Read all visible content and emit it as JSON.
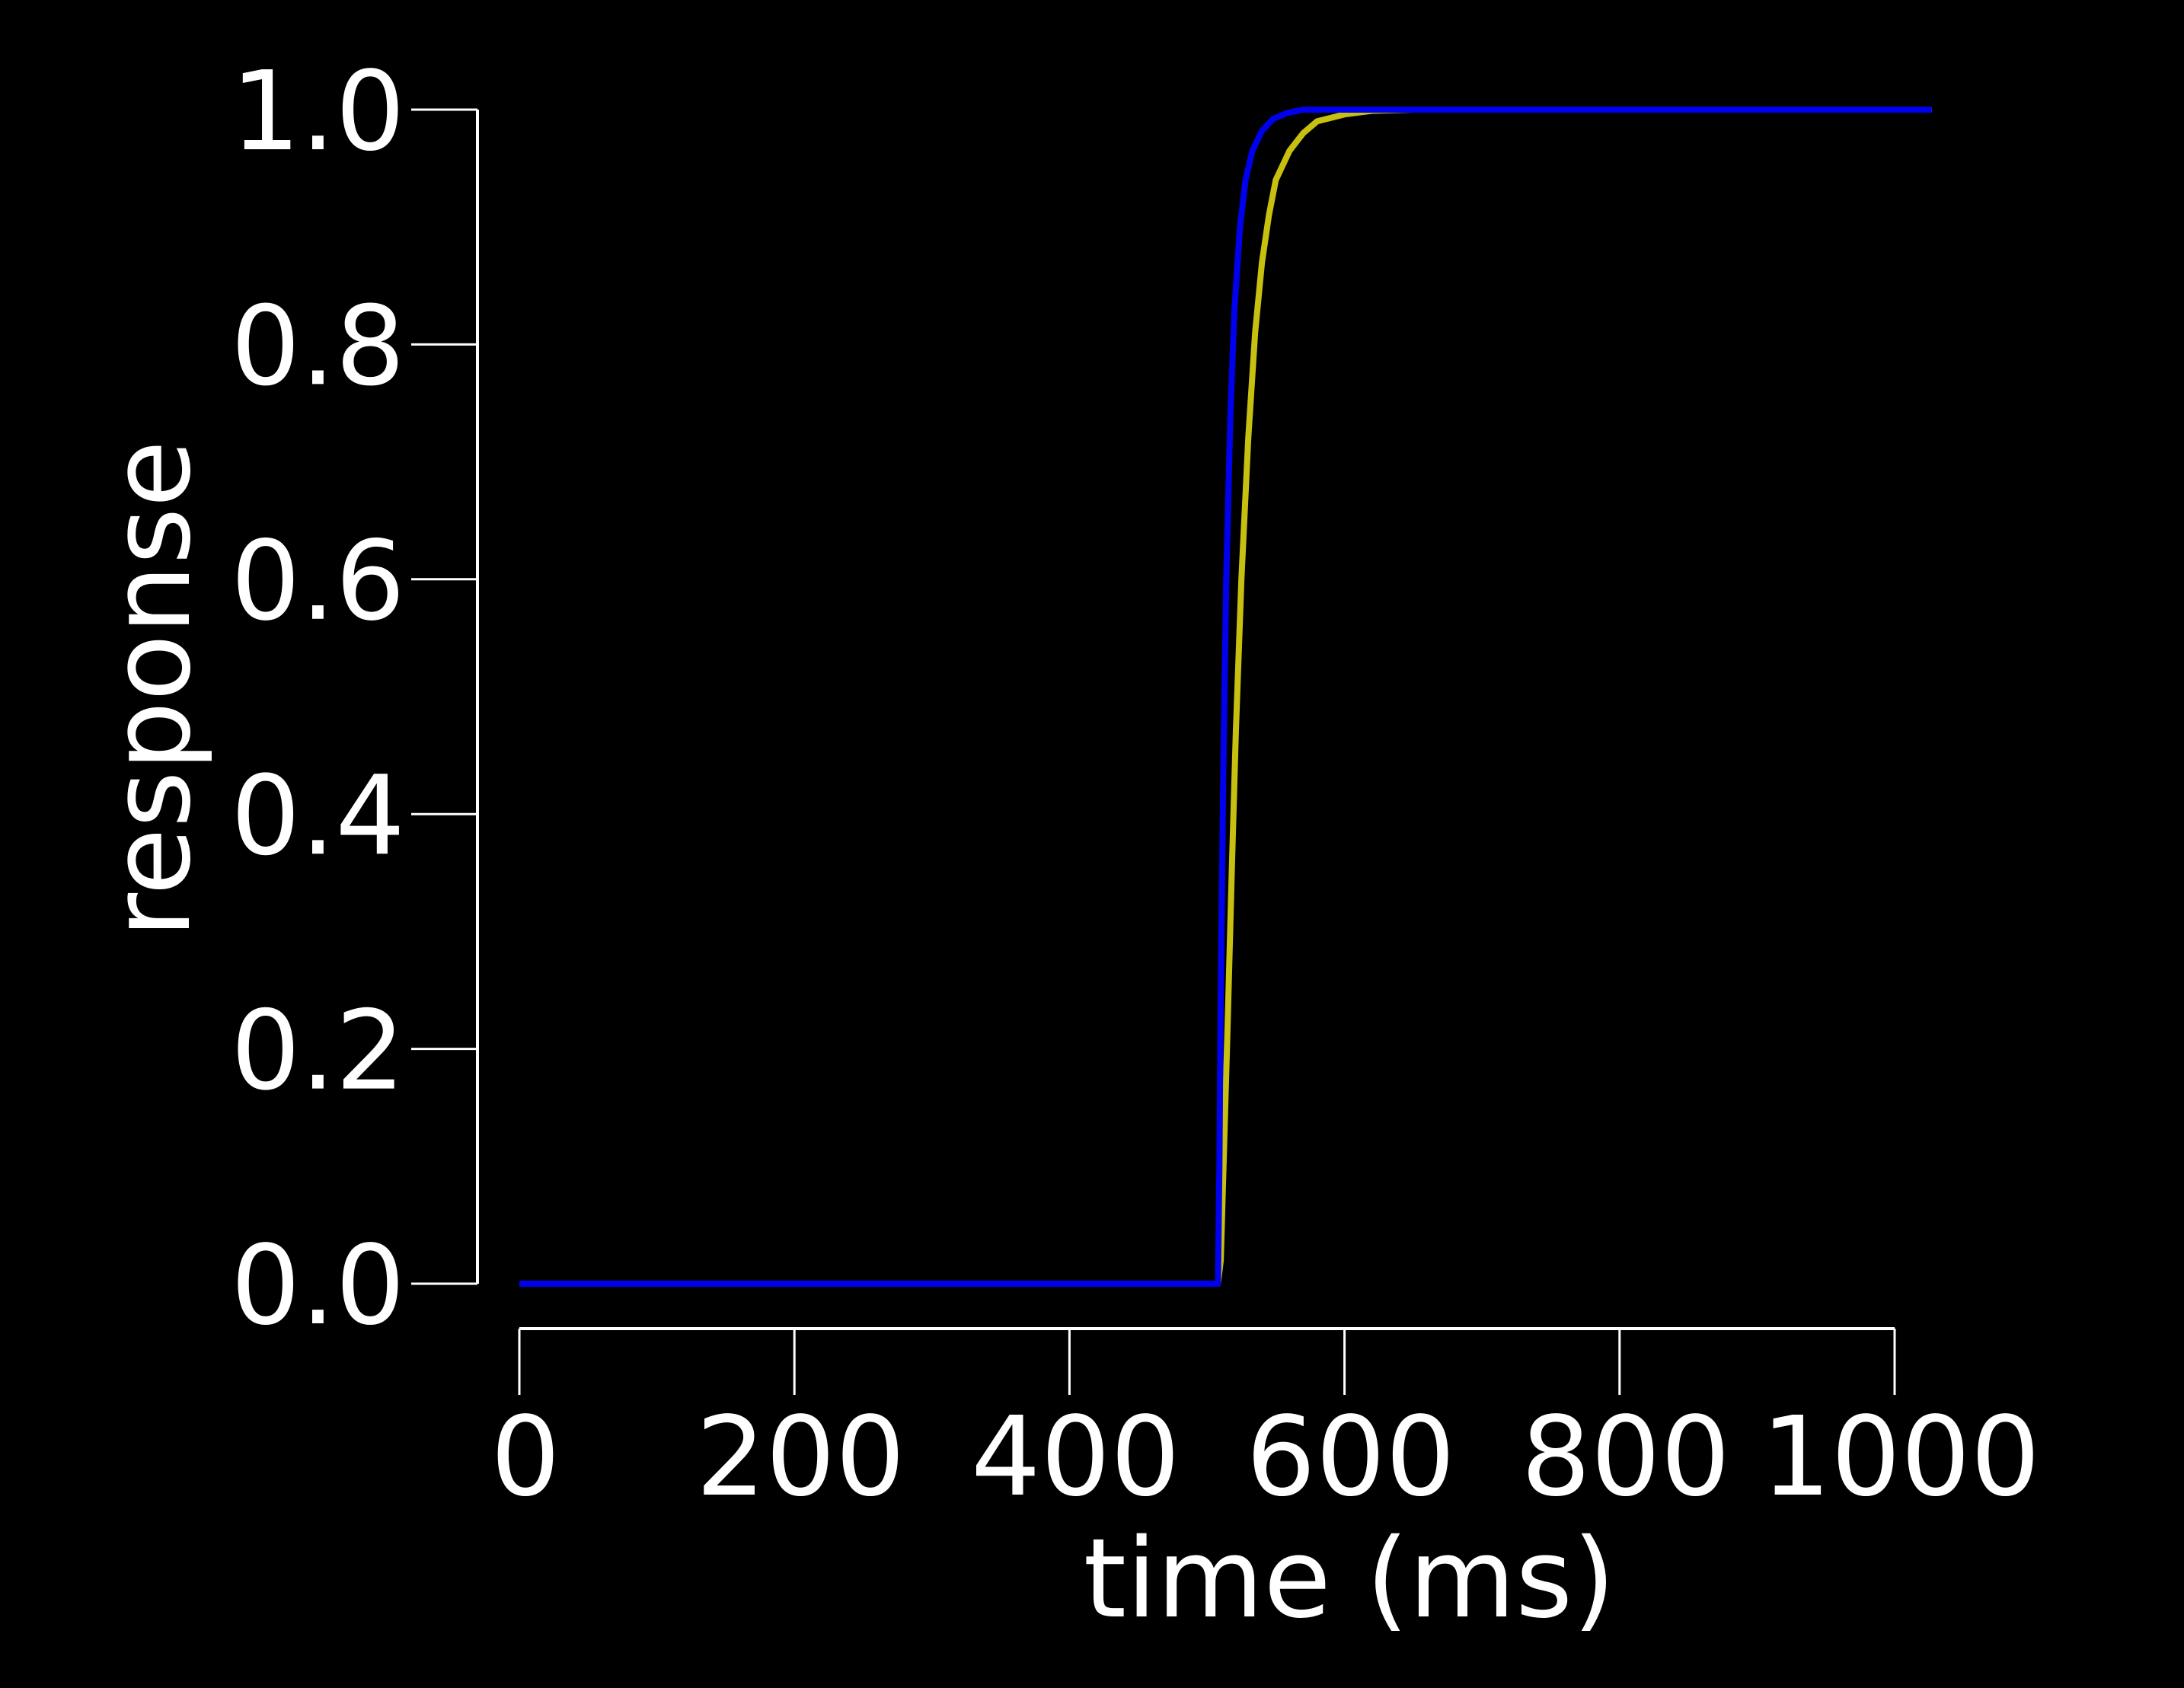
{
  "chart_data": {
    "type": "line",
    "title": "",
    "xlabel": "time (ms)",
    "ylabel": "response",
    "xlim": [
      0,
      1000
    ],
    "ylim": [
      0,
      1
    ],
    "x_ticks": [
      0,
      200,
      400,
      600,
      800,
      1000
    ],
    "x_tick_labels": [
      "0",
      "200",
      "400",
      "600",
      "800",
      "1000"
    ],
    "y_ticks": [
      0.0,
      0.2,
      0.4,
      0.6,
      0.8,
      1.0
    ],
    "y_tick_labels": [
      "0.0",
      "0.2",
      "0.4",
      "0.6",
      "0.8",
      "1.0"
    ],
    "grid": false,
    "legend": "none",
    "background": "#000000",
    "axis_color": "#ffffff",
    "series": [
      {
        "color": "#c8c010",
        "x": [
          0,
          508,
          510,
          512,
          515,
          518,
          521,
          525,
          530,
          535,
          540,
          545,
          550,
          560,
          570,
          580,
          600,
          620,
          650,
          700,
          800,
          1000,
          1027
        ],
        "y": [
          0,
          0,
          0.02,
          0.1,
          0.22,
          0.35,
          0.47,
          0.6,
          0.72,
          0.81,
          0.87,
          0.91,
          0.94,
          0.965,
          0.98,
          0.99,
          0.996,
          0.999,
          1.0,
          1.0,
          1.0,
          1.0,
          1.0
        ]
      },
      {
        "color": "#0000ee",
        "x": [
          0,
          508,
          509,
          510,
          512,
          514,
          517,
          520,
          524,
          528,
          533,
          540,
          548,
          558,
          570,
          590,
          620,
          700,
          800,
          1000,
          1027
        ],
        "y": [
          0,
          0,
          0.1,
          0.25,
          0.45,
          0.6,
          0.74,
          0.83,
          0.9,
          0.94,
          0.965,
          0.982,
          0.992,
          0.997,
          1.0,
          1.0,
          1.0,
          1.0,
          1.0,
          1.0,
          1.0
        ]
      }
    ]
  }
}
